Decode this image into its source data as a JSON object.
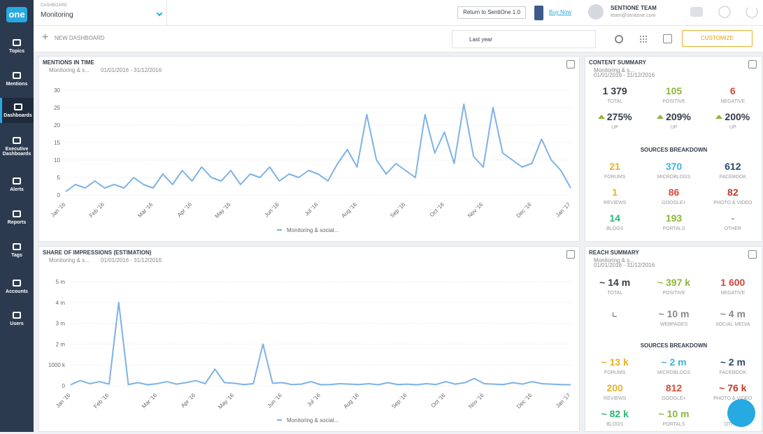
{
  "sidebar": {
    "logo": "one",
    "items": [
      "Topics",
      "Mentions",
      "Dashboards",
      "Executive Dashboards",
      "Alerts",
      "Reports",
      "Tags",
      "Accounts",
      "Users"
    ]
  },
  "header": {
    "section": "DASHBOARD",
    "dashboard": "Monitoring",
    "return_button": "Return to SentiOne 1.0",
    "buy_now": "Buy Now",
    "team": "SENTIONE TEAM",
    "email": "team@sentione.com"
  },
  "toolbar": {
    "new_dashboard": "NEW DASHBOARD",
    "period": "Last year",
    "customize": "CUSTOMIZE"
  },
  "chart_data": [
    {
      "type": "line",
      "title": "MENTIONS IN TIME",
      "source": "Monitoring & s...",
      "date_range": "01/01/2016 - 31/12/2016",
      "categories": [
        "Jan '16",
        null,
        null,
        null,
        "Feb '16",
        null,
        null,
        null,
        null,
        "Mar '16",
        null,
        null,
        null,
        "Apr '16",
        null,
        null,
        null,
        "May '16",
        null,
        null,
        null,
        null,
        "Jun '16",
        null,
        null,
        null,
        "Jul '16",
        null,
        null,
        null,
        "Aug '16",
        null,
        null,
        null,
        null,
        "Sep '16",
        null,
        null,
        null,
        "Oct '16",
        null,
        null,
        null,
        "Nov '16",
        null,
        null,
        null,
        null,
        "Dec '16",
        null,
        null,
        null,
        "Jan '17"
      ],
      "series": [
        {
          "name": "Monitoring & social...",
          "color": "#7db2e6",
          "values": [
            1,
            3,
            2,
            4,
            2,
            3,
            2,
            5,
            3,
            2,
            6,
            3,
            7,
            4,
            8,
            5,
            4,
            7,
            3,
            6,
            5,
            8,
            4,
            6,
            5,
            7,
            6,
            4,
            9,
            13,
            8,
            23,
            10,
            6,
            9,
            7,
            5,
            23,
            12,
            18,
            9,
            26,
            11,
            8,
            25,
            12,
            10,
            8,
            9,
            16,
            10,
            7,
            2
          ]
        }
      ],
      "ylim": [
        0,
        30
      ],
      "yticks": [
        0,
        5,
        10,
        15,
        20,
        25,
        30
      ],
      "grid": true
    },
    {
      "type": "line",
      "title": "SHARE OF IMPRESSIONS (ESTIMATION)",
      "source": "Monitoring & s...",
      "date_range": "01/01/2016 - 31/12/2016",
      "categories": [
        "Jan '16",
        null,
        null,
        null,
        "Feb '16",
        null,
        null,
        null,
        null,
        "Mar '16",
        null,
        null,
        null,
        "Apr '16",
        null,
        null,
        null,
        "May '16",
        null,
        null,
        null,
        null,
        "Jun '16",
        null,
        null,
        null,
        "Jul '16",
        null,
        null,
        null,
        "Aug '16",
        null,
        null,
        null,
        null,
        "Sep '16",
        null,
        null,
        null,
        "Oct '16",
        null,
        null,
        null,
        "Nov '16",
        null,
        null,
        null,
        null,
        "Dec '16",
        null,
        null,
        null,
        "Jan '17"
      ],
      "series": [
        {
          "name": "Monitoring & social...",
          "color": "#7db2e6",
          "values": [
            50000,
            250000,
            100000,
            200000,
            80000,
            4000000,
            60000,
            150000,
            50000,
            100000,
            200000,
            80000,
            150000,
            250000,
            100000,
            800000,
            150000,
            120000,
            60000,
            100000,
            2000000,
            120000,
            150000,
            60000,
            80000,
            200000,
            50000,
            60000,
            100000,
            80000,
            60000,
            100000,
            50000,
            150000,
            60000,
            80000,
            50000,
            100000,
            60000,
            200000,
            80000,
            150000,
            350000,
            100000,
            80000,
            60000,
            150000,
            80000,
            200000,
            100000,
            80000,
            60000,
            50000
          ]
        }
      ],
      "ylim": [
        0,
        5000000
      ],
      "yticks": [
        0,
        {
          "value": 1000000,
          "label": "1000 k"
        },
        {
          "value": 2000000,
          "label": "2 m"
        },
        {
          "value": 3000000,
          "label": "3 m"
        },
        {
          "value": 4000000,
          "label": "4 m"
        },
        {
          "value": 5000000,
          "label": "5 m"
        }
      ],
      "grid": true
    }
  ],
  "content_summary": {
    "title": "CONTENT SUMMARY",
    "source": "Monitoring & s...",
    "date_range": "01/01/2016 - 31/12/2016",
    "stats": [
      {
        "value": "1 379",
        "label": "TOTAL",
        "color": "#333d4a"
      },
      {
        "value": "105",
        "label": "POSITIVE",
        "color": "#8cb63c"
      },
      {
        "value": "6",
        "label": "NEGATIVE",
        "color": "#d0453a"
      }
    ],
    "changes": [
      {
        "value": "275%",
        "label": "UP",
        "color": "#333d4a"
      },
      {
        "value": "209%",
        "label": "UP",
        "color": "#333d4a"
      },
      {
        "value": "200%",
        "label": "UP",
        "color": "#333d4a"
      }
    ],
    "sources_title": "SOURCES BREAKDOWN",
    "sources": [
      {
        "value": "21",
        "label": "FORUMS",
        "color": "#e8b12a"
      },
      {
        "value": "370",
        "label": "MICROBLOGS",
        "color": "#3fb1e0"
      },
      {
        "value": "612",
        "label": "FACEBOOK",
        "color": "#2f4a6e"
      },
      {
        "value": "1",
        "label": "REVIEWS",
        "color": "#e8b12a"
      },
      {
        "value": "86",
        "label": "GOOGLE+",
        "color": "#dd4b39"
      },
      {
        "value": "82",
        "label": "PHOTO & VIDEO",
        "color": "#c0392b"
      },
      {
        "value": "14",
        "label": "BLOGS",
        "color": "#2bb673"
      },
      {
        "value": "193",
        "label": "PORTALS",
        "color": "#8cb63c"
      },
      {
        "value": "-",
        "label": "OTHER",
        "color": "#999999"
      }
    ]
  },
  "reach_summary": {
    "title": "REACH SUMMARY",
    "source": "Monitoring & s...",
    "date_range": "01/01/2016 - 31/12/2016",
    "stats": [
      {
        "value": "~ 14 m",
        "label": "TOTAL",
        "color": "#333d4a"
      },
      {
        "value": "~ 397 k",
        "label": "POSITIVE",
        "color": "#8cb63c"
      },
      {
        "value": "1 600",
        "label": "NEGATIVE",
        "color": "#d0453a"
      }
    ],
    "channels": [
      {
        "value": "~ 10 m",
        "label": "WEBPAGES",
        "color": "#888888"
      },
      {
        "value": "~ 4 m",
        "label": "SOCIAL MEDIA",
        "color": "#888888"
      }
    ],
    "sources_title": "SOURCES BREAKDOWN",
    "sources": [
      {
        "value": "~ 13 k",
        "label": "FORUMS",
        "color": "#e8b12a"
      },
      {
        "value": "~ 2 m",
        "label": "MICROBLOGS",
        "color": "#3fb1e0"
      },
      {
        "value": "~ 2 m",
        "label": "FACEBOOK",
        "color": "#2f4a6e"
      },
      {
        "value": "200",
        "label": "REVIEWS",
        "color": "#e8b12a"
      },
      {
        "value": "812",
        "label": "GOOGLE+",
        "color": "#dd4b39"
      },
      {
        "value": "~ 76 k",
        "label": "PHOTO & VIDEO",
        "color": "#c0392b"
      },
      {
        "value": "~ 82 k",
        "label": "BLOGS",
        "color": "#2bb673"
      },
      {
        "value": "~ 10 m",
        "label": "PORTALS",
        "color": "#8cb63c"
      },
      {
        "label": "OTHER",
        "color": "#999999"
      }
    ]
  }
}
